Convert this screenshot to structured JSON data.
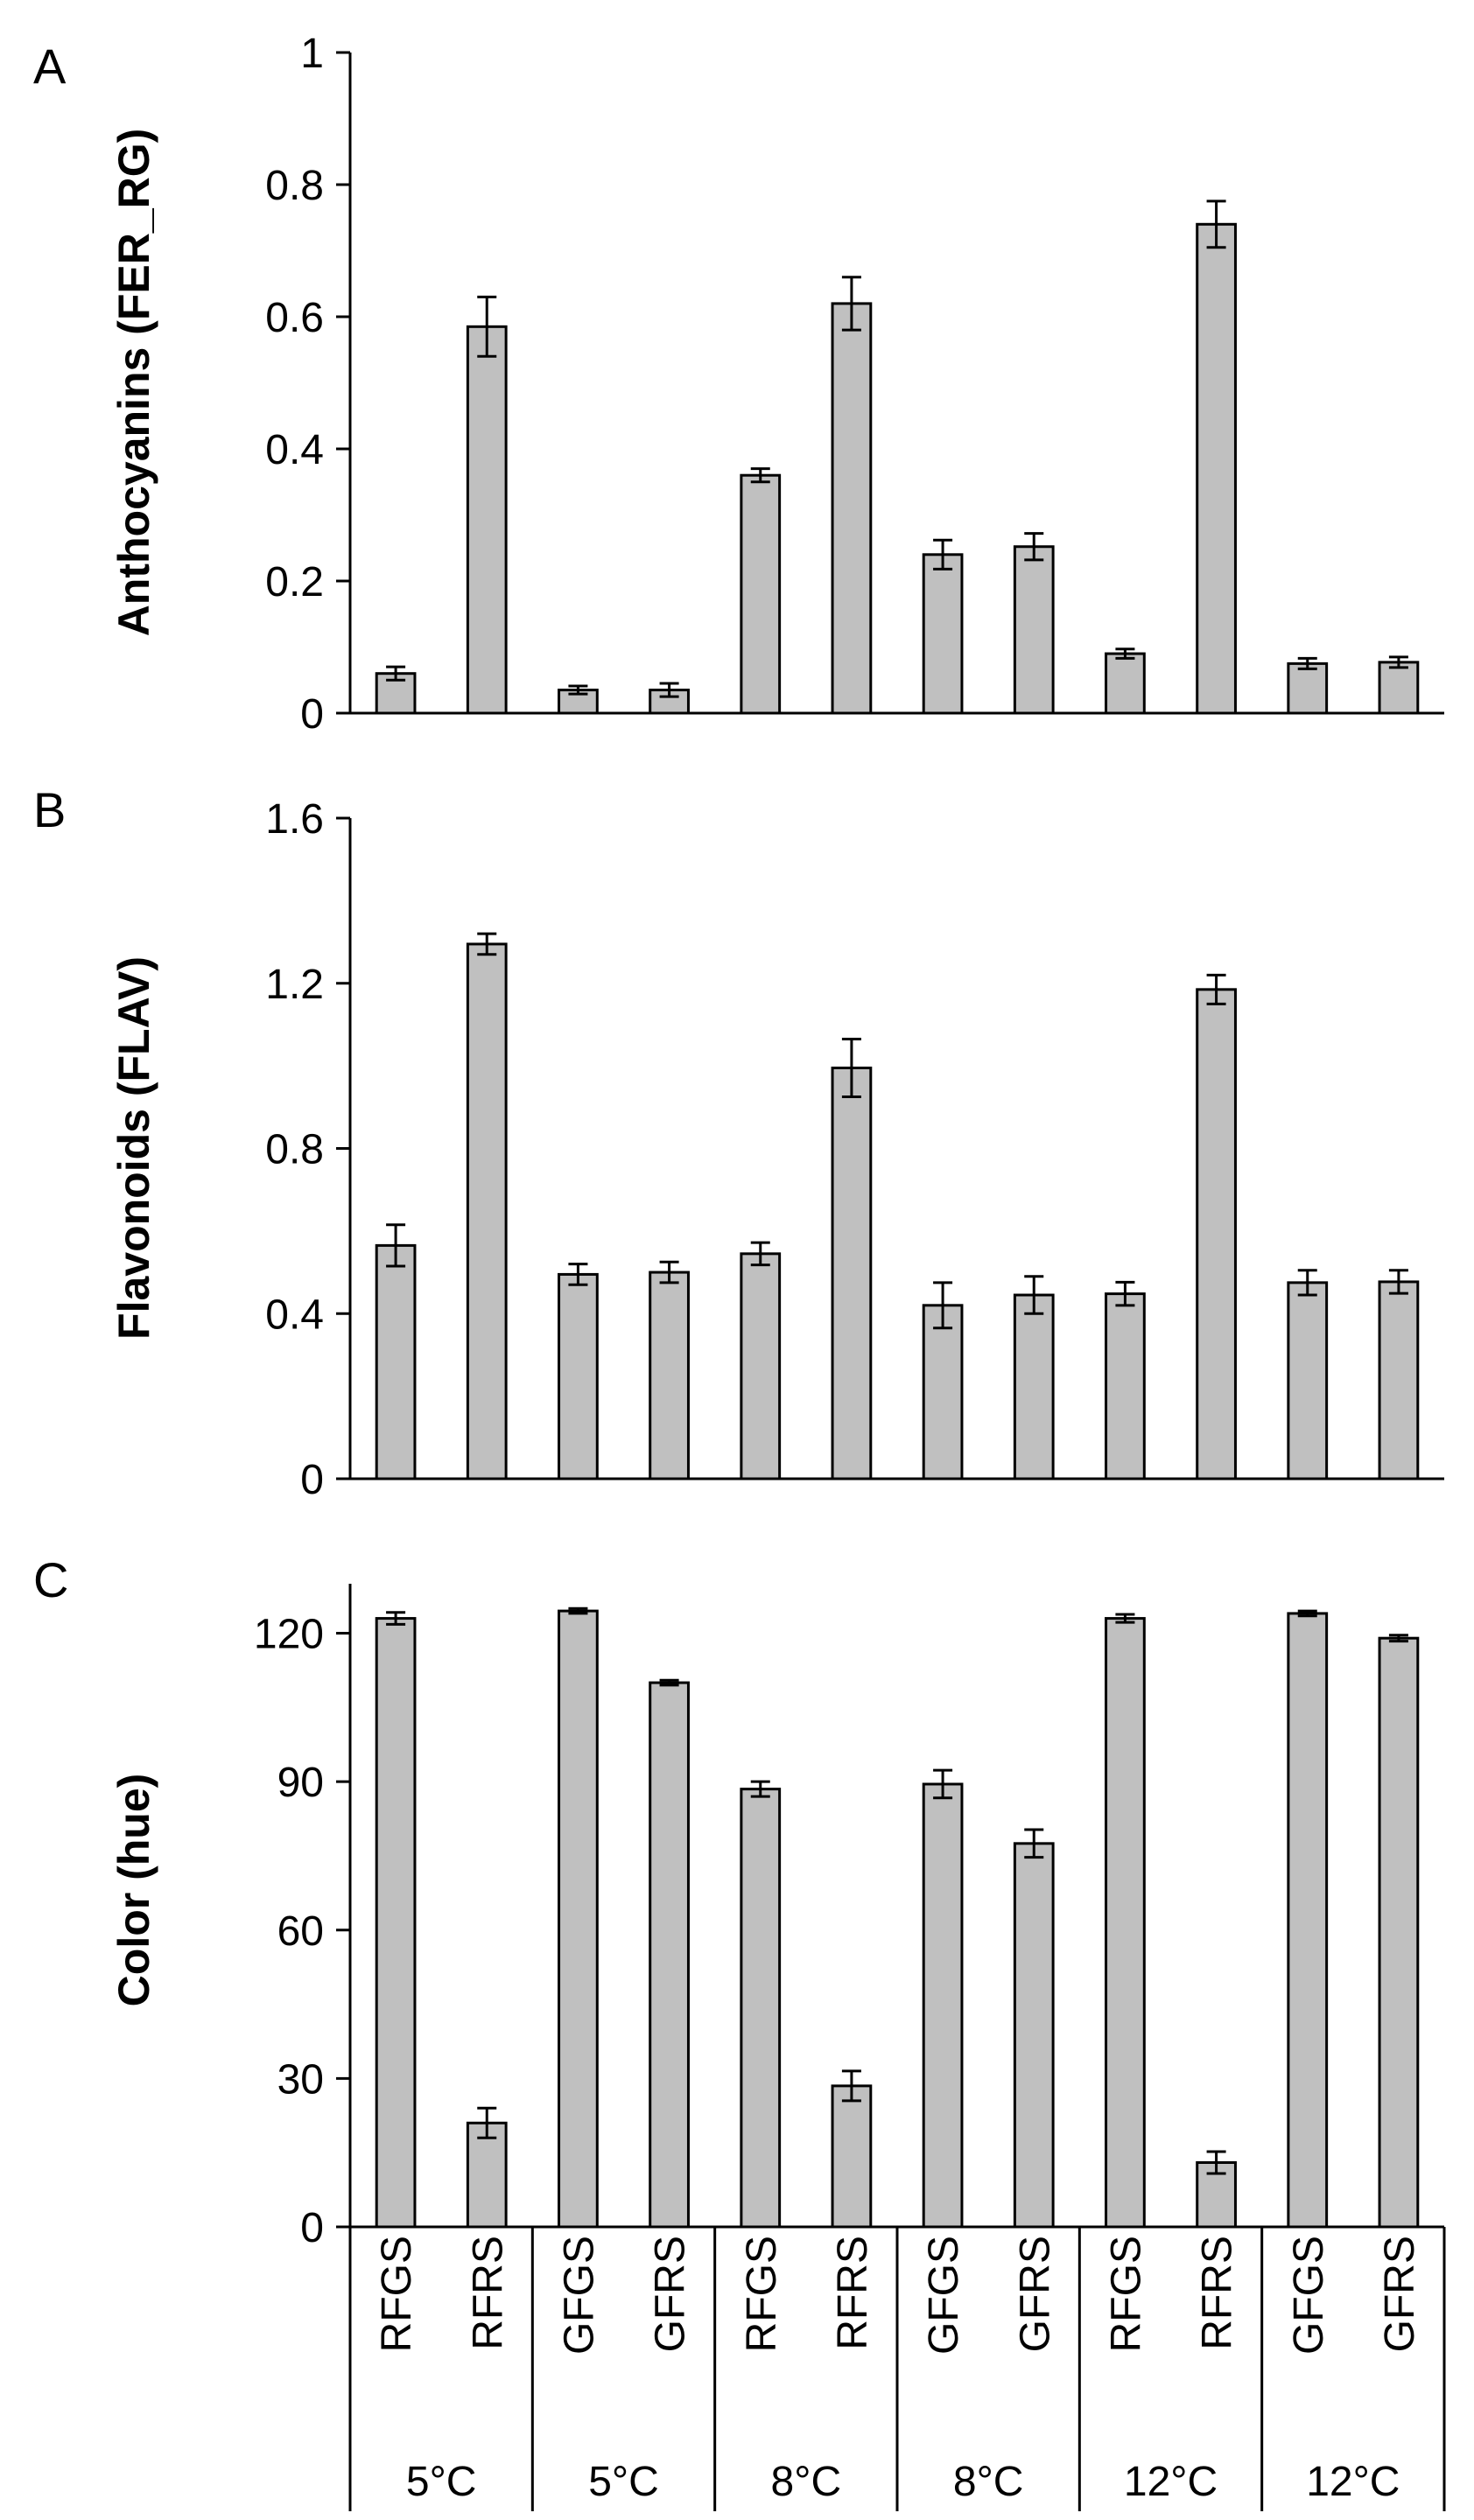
{
  "chart_data": [
    {
      "type": "bar",
      "panel_label": "A",
      "ylabel": "Anthocyanins (FER_RG)",
      "ylim": [
        0,
        1
      ],
      "yticks": [
        "0",
        "0.2",
        "0.4",
        "0.6",
        "0.8",
        "1"
      ],
      "ytick_values": [
        0,
        0.2,
        0.4,
        0.6,
        0.8,
        1
      ],
      "values": [
        0.06,
        0.585,
        0.035,
        0.035,
        0.36,
        0.62,
        0.24,
        0.252,
        0.09,
        0.74,
        0.075,
        0.077
      ],
      "errors": [
        0.01,
        0.045,
        0.006,
        0.01,
        0.01,
        0.04,
        0.022,
        0.02,
        0.007,
        0.035,
        0.008,
        0.008
      ]
    },
    {
      "type": "bar",
      "panel_label": "B",
      "ylabel": "Flavonoids (FLAV)",
      "ylim": [
        0,
        1.6
      ],
      "yticks": [
        "0",
        "0.4",
        "0.8",
        "1.2",
        "1.6"
      ],
      "ytick_values": [
        0,
        0.4,
        0.8,
        1.2,
        1.6
      ],
      "values": [
        0.565,
        1.295,
        0.495,
        0.5,
        0.545,
        0.995,
        0.42,
        0.445,
        0.448,
        1.185,
        0.475,
        0.477
      ],
      "errors": [
        0.05,
        0.025,
        0.025,
        0.025,
        0.027,
        0.07,
        0.055,
        0.045,
        0.028,
        0.035,
        0.03,
        0.028
      ]
    },
    {
      "type": "bar",
      "panel_label": "C",
      "ylabel": "Color (hue)",
      "ylim": [
        0,
        130
      ],
      "yticks": [
        "0",
        "30",
        "60",
        "90",
        "120"
      ],
      "ytick_values": [
        0,
        30,
        60,
        90,
        120
      ],
      "values": [
        123,
        21,
        124.5,
        110,
        88.5,
        28.5,
        89.5,
        77.5,
        123,
        13,
        124,
        119
      ],
      "errors": [
        1.2,
        3,
        0.5,
        0.5,
        1.5,
        3,
        2.8,
        2.8,
        0.8,
        2.2,
        0.5,
        0.6
      ]
    }
  ],
  "categories": [
    "RFGS",
    "RFRS",
    "GFGS",
    "GFRS",
    "RFGS",
    "RFRS",
    "GFGS",
    "GFRS",
    "RFGS",
    "RFRS",
    "GFGS",
    "GFRS"
  ],
  "groups": [
    "5°C",
    "5°C",
    "8°C",
    "8°C",
    "12°C",
    "12°C"
  ],
  "colors": {
    "bar_fill": "#c0c0c0",
    "bar_stroke": "#000000",
    "axis": "#000000"
  }
}
